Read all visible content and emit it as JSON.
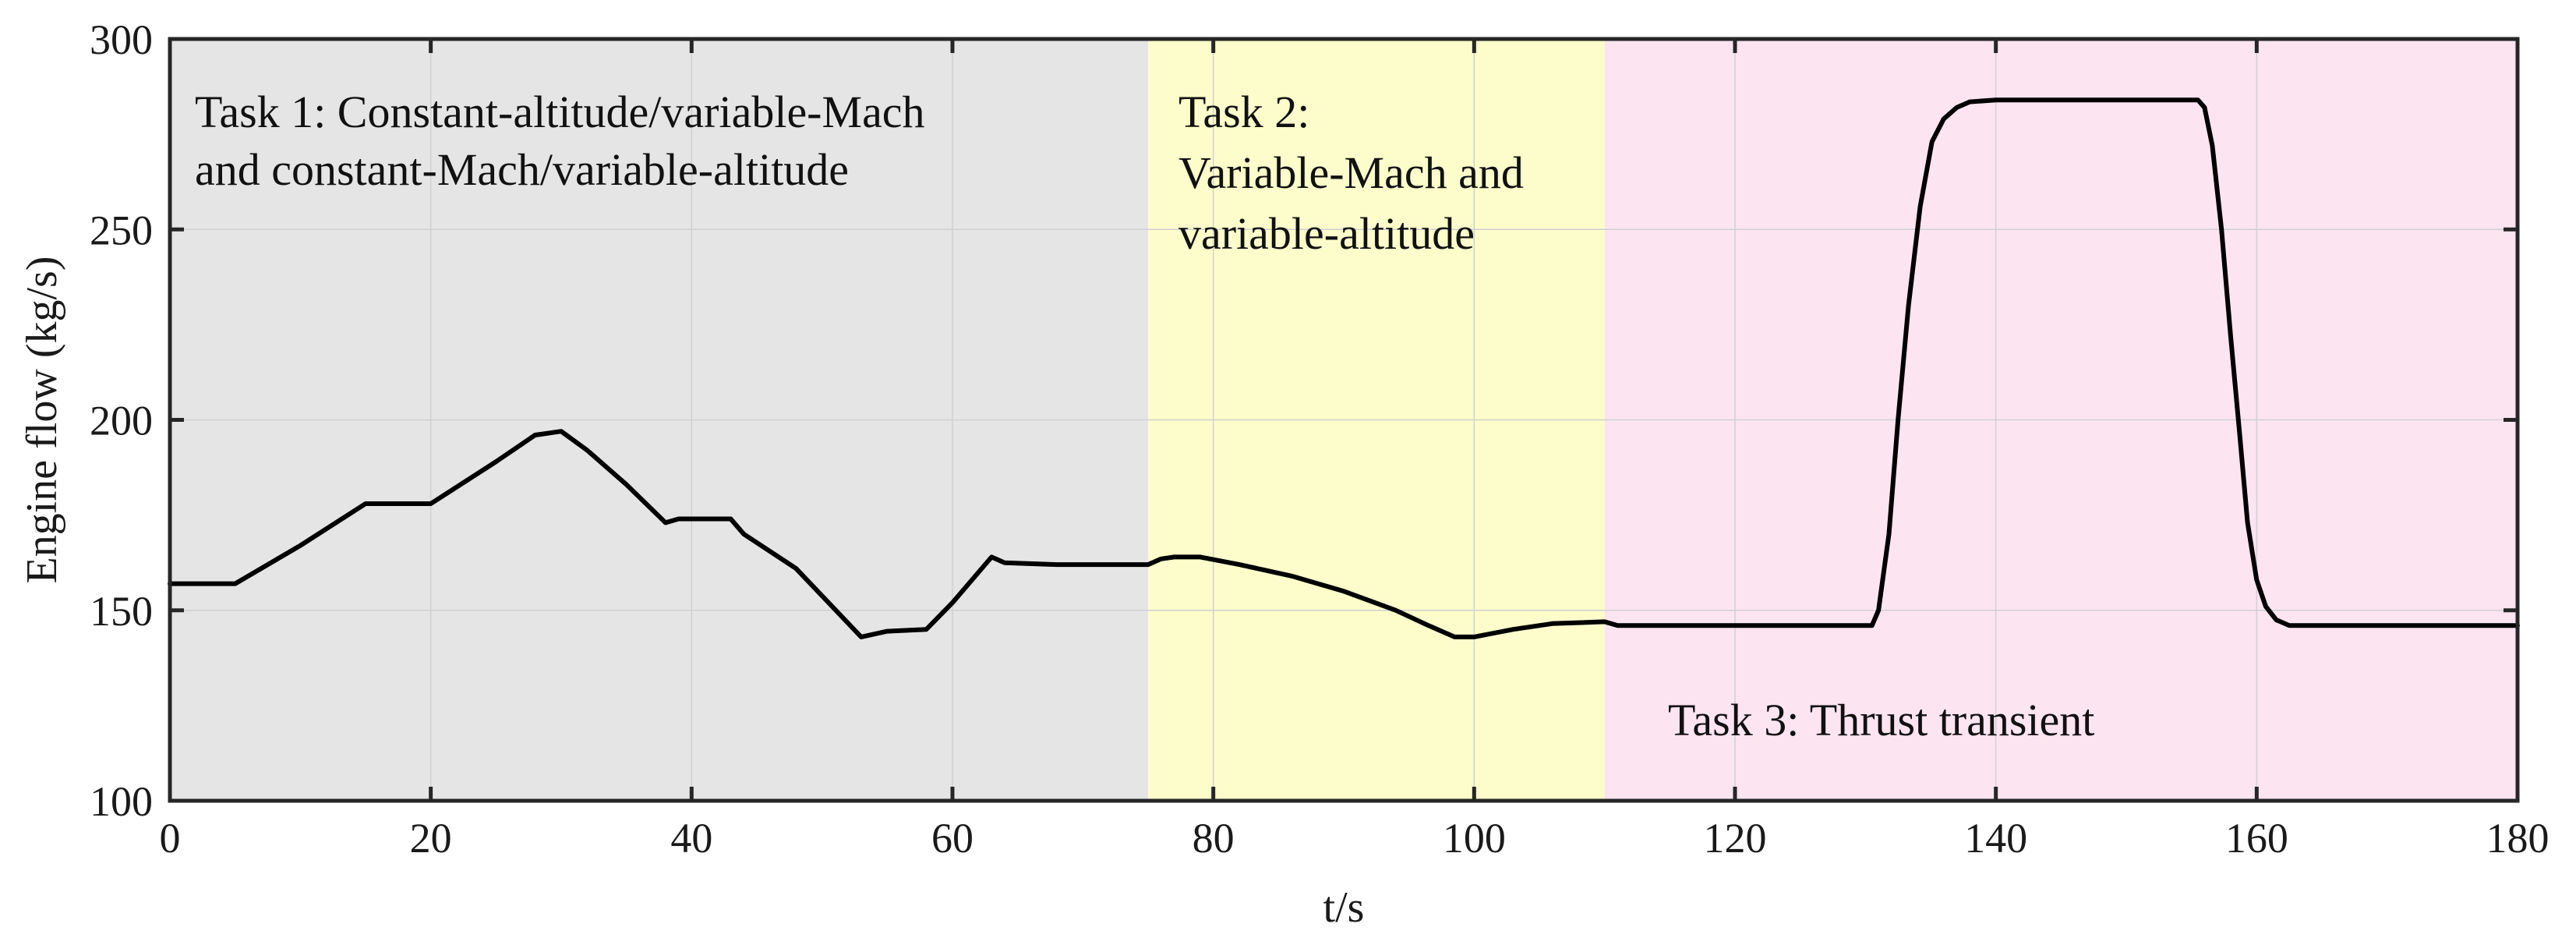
{
  "chart_data": {
    "type": "line",
    "title": "",
    "xlabel": "t/s",
    "ylabel": "Engine flow (kg/s)",
    "xlim": [
      0,
      180
    ],
    "ylim": [
      100,
      300
    ],
    "xticks": [
      0,
      20,
      40,
      60,
      80,
      100,
      120,
      140,
      160,
      180
    ],
    "yticks": [
      100,
      150,
      200,
      250,
      300
    ],
    "grid": true,
    "regions": [
      {
        "x0": 0,
        "x1": 75,
        "color": "#e5e5e5",
        "lines": [
          "Task 1: Constant-altitude/variable-Mach",
          "and constant-Mach/variable-altitude"
        ]
      },
      {
        "x0": 75,
        "x1": 110,
        "color": "#fdfdcb",
        "lines": [
          "Task 2:",
          "Variable-Mach and",
          "variable-altitude"
        ]
      },
      {
        "x0": 110,
        "x1": 180,
        "color": "#fde4f1",
        "lines": [
          "Task 3: Thrust transient"
        ]
      }
    ],
    "series": [
      {
        "color": "#000000",
        "x": [
          0,
          5,
          10,
          15,
          20,
          25,
          28,
          30,
          32,
          35,
          38,
          39,
          43,
          44,
          48,
          53,
          55,
          58,
          60,
          63,
          64,
          68,
          75,
          76,
          77,
          79,
          82,
          86,
          90,
          94,
          96.5,
          98.5,
          100,
          103,
          106,
          110,
          111,
          115,
          120,
          125,
          130.5,
          131,
          131.8,
          132.5,
          133.3,
          134.2,
          135.1,
          136,
          137,
          138,
          140,
          145,
          150,
          155.5,
          156,
          156.6,
          157.3,
          158,
          158.7,
          159.3,
          160,
          160.7,
          161.5,
          162.5,
          165,
          170,
          175,
          180
        ],
        "y": [
          157,
          157,
          167,
          178,
          178,
          189,
          196,
          197,
          192,
          183,
          173,
          174,
          174,
          170,
          161,
          143,
          144.5,
          145,
          152,
          164,
          162.5,
          162,
          162,
          163.5,
          164,
          164,
          162,
          159,
          155,
          150,
          146,
          143,
          143,
          145,
          146.5,
          147,
          146,
          146,
          146,
          146,
          146,
          150,
          170,
          200,
          230,
          256,
          273,
          279,
          282,
          283.5,
          284,
          284,
          284,
          284,
          282,
          272,
          250,
          222,
          196,
          173,
          158,
          151,
          147.5,
          146,
          146,
          146,
          146,
          146
        ]
      }
    ]
  }
}
